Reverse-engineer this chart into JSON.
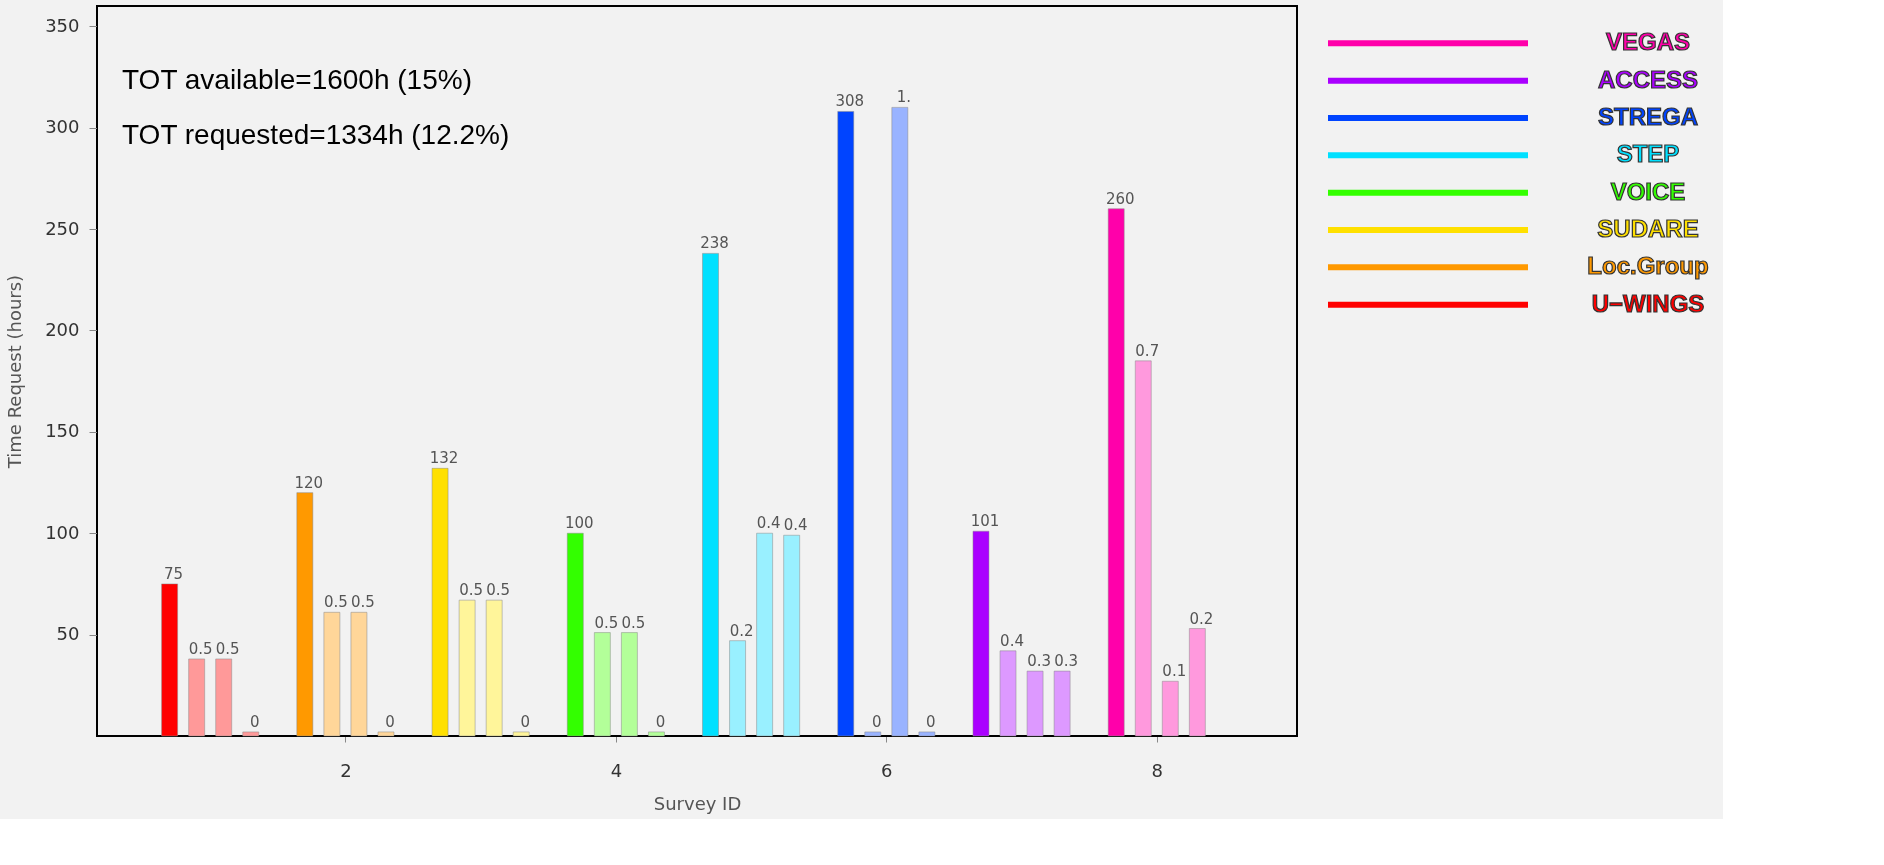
{
  "chart_data": {
    "type": "bar",
    "xlabel": "Survey ID",
    "ylabel": "Time Request (hours)",
    "annotations": [
      "TOT available=1600h (15%)",
      "TOT requested=1334h (12.2%)",
      {
        "text": "0.7",
        "x": 7.9,
        "y": 185
      },
      {
        "text": "0.1",
        "x": 8.1,
        "y": 27
      },
      {
        "text": "0.2",
        "x": 8.3,
        "y": 53
      },
      {
        "text": "0.4",
        "x": 6.9,
        "y": 42
      },
      {
        "text": "0.3",
        "x": 7.1,
        "y": 32
      },
      {
        "text": "0.3",
        "x": 7.3,
        "y": 32
      },
      {
        "text": "0",
        "x": 5.9,
        "y": 2
      },
      {
        "text": "1.",
        "x": 6.1,
        "y": 310
      },
      {
        "text": "0",
        "x": 6.3,
        "y": 2
      },
      {
        "text": "0.2",
        "x": 4.9,
        "y": 47
      },
      {
        "text": "0.4",
        "x": 5.1,
        "y": 100
      },
      {
        "text": "0.4",
        "x": 5.3,
        "y": 99
      },
      {
        "text": "0.5",
        "x": 3.9,
        "y": 51
      },
      {
        "text": "0.5",
        "x": 4.1,
        "y": 51
      },
      {
        "text": "0",
        "x": 4.3,
        "y": 2
      },
      {
        "text": "0.5",
        "x": 2.9,
        "y": 67
      },
      {
        "text": "0.5",
        "x": 3.1,
        "y": 67
      },
      {
        "text": "0",
        "x": 3.3,
        "y": 2
      },
      {
        "text": "0.5",
        "x": 1.9,
        "y": 61
      },
      {
        "text": "0.5",
        "x": 2.1,
        "y": 61
      },
      {
        "text": "0",
        "x": 2.3,
        "y": 2
      },
      {
        "text": "0.5",
        "x": 0.9,
        "y": 38
      },
      {
        "text": "0.5",
        "x": 1.1,
        "y": 38
      },
      {
        "text": "0",
        "x": 1.3,
        "y": 2
      }
    ],
    "xlim": [
      0.2,
      9.0
    ],
    "xticks": [
      2,
      4,
      6,
      8
    ],
    "ylim": [
      0,
      360
    ],
    "yticks": [
      50,
      100,
      150,
      200,
      250,
      300,
      350
    ],
    "grid": false,
    "legend": "top right",
    "series": [
      {
        "name": "VEGAS",
        "color": "#ff00aa",
        "x": [
          7.7,
          7.9,
          8.1,
          8.3
        ],
        "values": [
          260,
          185,
          27,
          53
        ],
        "colors": [
          "#ff00aa",
          "#ff99dd",
          "#ff99dd",
          "#ff99dd"
        ],
        "value_labels": [
          "260",
          null,
          null,
          null
        ]
      },
      {
        "name": "ACCESS",
        "color": "#aa00ff",
        "x": [
          6.7,
          6.9,
          7.1,
          7.3
        ],
        "values": [
          101,
          42,
          32,
          32
        ],
        "colors": [
          "#aa00ff",
          "#dd99ff",
          "#dd99ff",
          "#dd99ff"
        ],
        "value_labels": [
          "101",
          null,
          null,
          null
        ]
      },
      {
        "name": "STREGA",
        "color": "#0044ff",
        "x": [
          5.7,
          5.9,
          6.1,
          6.3
        ],
        "values": [
          308,
          2,
          310,
          2
        ],
        "colors": [
          "#0044ff",
          "#99b3ff",
          "#99b3ff",
          "#99b3ff"
        ],
        "value_labels": [
          "308",
          null,
          null,
          null
        ]
      },
      {
        "name": "STEP",
        "color": "#00e0ff",
        "x": [
          4.7,
          4.9,
          5.1,
          5.3
        ],
        "values": [
          238,
          47,
          100,
          99
        ],
        "colors": [
          "#00e0ff",
          "#99f0ff",
          "#99f0ff",
          "#99f0ff"
        ],
        "value_labels": [
          "238",
          null,
          null,
          null
        ]
      },
      {
        "name": "VOICE",
        "color": "#33ff00",
        "x": [
          3.7,
          3.9,
          4.1,
          4.3
        ],
        "values": [
          100,
          51,
          51,
          2
        ],
        "colors": [
          "#33ff00",
          "#b3ff99",
          "#b3ff99",
          "#b3ff99"
        ],
        "value_labels": [
          "100",
          null,
          null,
          null
        ]
      },
      {
        "name": "SUDARE",
        "color": "#ffe000",
        "x": [
          2.7,
          2.9,
          3.1,
          3.3
        ],
        "values": [
          132,
          67,
          67,
          2
        ],
        "colors": [
          "#ffe000",
          "#fff59a",
          "#fff59a",
          "#fff59a"
        ],
        "value_labels": [
          "132",
          null,
          null,
          null
        ]
      },
      {
        "name": "Loc.Group",
        "color": "#ff9900",
        "x": [
          1.7,
          1.9,
          2.1,
          2.3
        ],
        "values": [
          120,
          61,
          61,
          2
        ],
        "colors": [
          "#ff9900",
          "#ffd699",
          "#ffd699",
          "#ffd699"
        ],
        "value_labels": [
          "120",
          null,
          null,
          null
        ]
      },
      {
        "name": "U−WINGS",
        "color": "#ff0000",
        "x": [
          0.7,
          0.9,
          1.1,
          1.3
        ],
        "values": [
          75,
          38,
          38,
          2
        ],
        "colors": [
          "#ff0000",
          "#ff9999",
          "#ff9999",
          "#ff9999"
        ],
        "value_labels": [
          "75",
          null,
          null,
          null
        ]
      }
    ]
  }
}
